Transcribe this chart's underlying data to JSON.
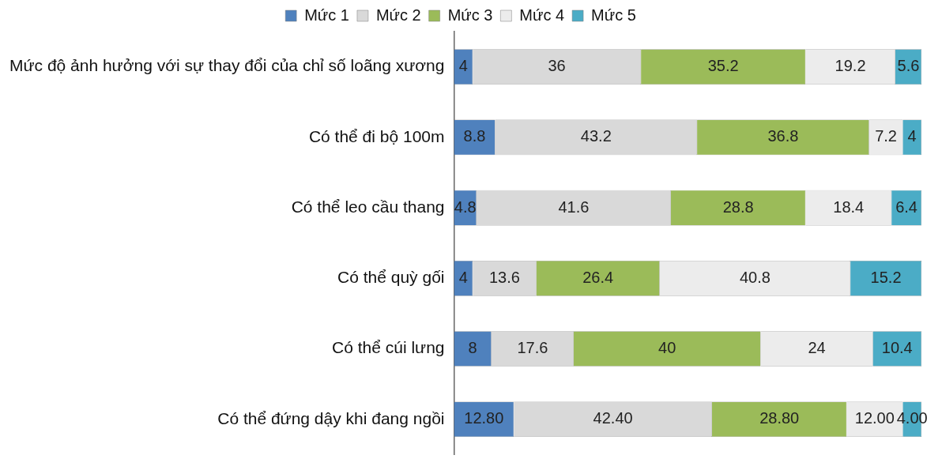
{
  "chart_data": {
    "type": "bar",
    "orientation": "horizontal",
    "stacked": true,
    "legend": "top",
    "grid": false,
    "data_labels": true,
    "categories": [
      "Mức độ ảnh hưởng với sự thay đổi của chỉ số loãng xương",
      "Có thể đi bộ 100m",
      "Có thể leo cầu thang",
      "Có thể quỳ gối",
      "Có thể cúi lưng",
      "Có thể đứng dậy khi đang ngồi"
    ],
    "series": [
      {
        "name": "Mức 1",
        "color": "#4f81bd",
        "values": [
          4,
          8.8,
          4.8,
          4,
          8,
          12.8
        ],
        "value_labels": [
          "4",
          "8.8",
          "4.8",
          "4",
          "8",
          "12.80"
        ]
      },
      {
        "name": "Mức 2",
        "color": "#d9d9d9",
        "values": [
          36,
          43.2,
          41.6,
          13.6,
          17.6,
          42.4
        ],
        "value_labels": [
          "36",
          "43.2",
          "41.6",
          "13.6",
          "17.6",
          "42.40"
        ]
      },
      {
        "name": "Mức 3",
        "color": "#9bbb59",
        "values": [
          35.2,
          36.8,
          28.8,
          26.4,
          40,
          28.8
        ],
        "value_labels": [
          "35.2",
          "36.8",
          "28.8",
          "26.4",
          "40",
          "28.80"
        ]
      },
      {
        "name": "Mức 4",
        "color": "#ececec",
        "values": [
          19.2,
          7.2,
          18.4,
          40.8,
          24,
          12
        ],
        "value_labels": [
          "19.2",
          "7.2",
          "18.4",
          "40.8",
          "24",
          "12.00"
        ]
      },
      {
        "name": "Mức 5",
        "color": "#4bacc6",
        "values": [
          5.6,
          4,
          6.4,
          15.2,
          10.4,
          4
        ],
        "value_labels": [
          "5.6",
          "4",
          "6.4",
          "15.2",
          "10.4",
          "4.00"
        ]
      }
    ]
  }
}
